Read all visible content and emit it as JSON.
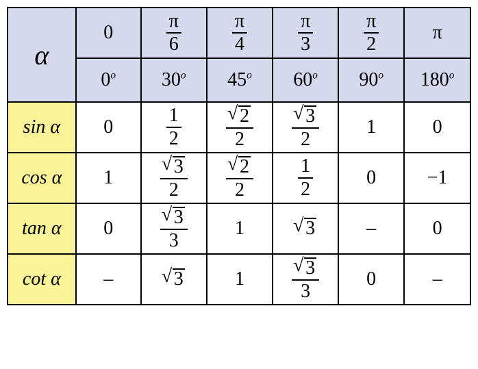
{
  "table": {
    "alpha_symbol": "α",
    "angles_rad": [
      {
        "type": "plain",
        "text": "0"
      },
      {
        "type": "frac",
        "num": "π",
        "den": "6"
      },
      {
        "type": "frac",
        "num": "π",
        "den": "4"
      },
      {
        "type": "frac",
        "num": "π",
        "den": "3"
      },
      {
        "type": "frac",
        "num": "π",
        "den": "2"
      },
      {
        "type": "plain",
        "text": "π"
      }
    ],
    "angles_deg": [
      "0",
      "30",
      "45",
      "60",
      "90",
      "180"
    ],
    "deg_suffix": "o",
    "functions": [
      {
        "label": "sin α",
        "values": [
          {
            "type": "plain",
            "text": "0"
          },
          {
            "type": "frac",
            "num": "1",
            "den": "2"
          },
          {
            "type": "sqrtfrac",
            "rad": "2",
            "den": "2"
          },
          {
            "type": "sqrtfrac",
            "rad": "3",
            "den": "2"
          },
          {
            "type": "plain",
            "text": "1"
          },
          {
            "type": "plain",
            "text": "0"
          }
        ]
      },
      {
        "label": "cos α",
        "values": [
          {
            "type": "plain",
            "text": "1"
          },
          {
            "type": "sqrtfrac",
            "rad": "3",
            "den": "2"
          },
          {
            "type": "sqrtfrac",
            "rad": "2",
            "den": "2"
          },
          {
            "type": "frac",
            "num": "1",
            "den": "2"
          },
          {
            "type": "plain",
            "text": "0"
          },
          {
            "type": "plain",
            "text": "−1"
          }
        ]
      },
      {
        "label": "tan α",
        "values": [
          {
            "type": "plain",
            "text": "0"
          },
          {
            "type": "sqrtfrac",
            "rad": "3",
            "den": "3"
          },
          {
            "type": "plain",
            "text": "1"
          },
          {
            "type": "sqrt",
            "rad": "3"
          },
          {
            "type": "plain",
            "text": "–"
          },
          {
            "type": "plain",
            "text": "0"
          }
        ]
      },
      {
        "label": "cot α",
        "values": [
          {
            "type": "plain",
            "text": "–"
          },
          {
            "type": "sqrt",
            "rad": "3"
          },
          {
            "type": "plain",
            "text": "1"
          },
          {
            "type": "sqrtfrac",
            "rad": "3",
            "den": "3"
          },
          {
            "type": "plain",
            "text": "0"
          },
          {
            "type": "plain",
            "text": "–"
          }
        ]
      }
    ],
    "colors": {
      "header_bg": "#d4d9ee",
      "func_bg": "#fbf398",
      "cell_bg": "#ffffff",
      "border": "#000000",
      "text": "#000000"
    }
  }
}
